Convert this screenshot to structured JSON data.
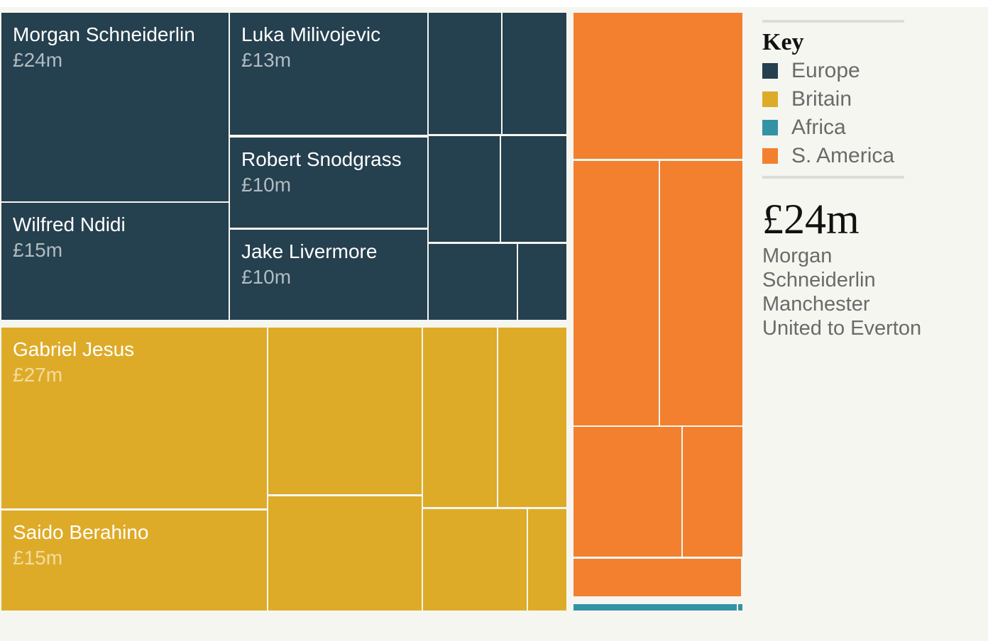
{
  "chart_data": {
    "type": "treemap",
    "legend": {
      "title": "Key",
      "items": [
        {
          "label": "Europe",
          "color": "#25404f"
        },
        {
          "label": "Britain",
          "color": "#deab28"
        },
        {
          "label": "Africa",
          "color": "#3393a5"
        },
        {
          "label": "S. America",
          "color": "#f2802f"
        }
      ]
    },
    "groups": [
      {
        "region": "Europe",
        "color": "#25404f",
        "label_color": "#b0bcc2",
        "players": [
          {
            "name": "Morgan Schneiderlin",
            "value_label": "£24m",
            "value": 24
          },
          {
            "name": "Wilfred Ndidi",
            "value_label": "£15m",
            "value": 15
          },
          {
            "name": "Luka Milivojevic",
            "value_label": "£13m",
            "value": 13
          },
          {
            "name": "Robert Snodgrass",
            "value_label": "£10m",
            "value": 10
          },
          {
            "name": "Jake Livermore",
            "value_label": "£10m",
            "value": 10
          }
        ]
      },
      {
        "region": "Britain",
        "color": "#deab28",
        "label_color": "#f3dca0",
        "players": [
          {
            "name": "Gabriel Jesus",
            "value_label": "£27m",
            "value": 27
          },
          {
            "name": "Saido Berahino",
            "value_label": "£15m",
            "value": 15
          }
        ]
      },
      {
        "region": "S. America",
        "color": "#f2802f",
        "players": []
      },
      {
        "region": "Africa",
        "color": "#3393a5",
        "players": []
      }
    ],
    "selected": {
      "value_label": "£24m",
      "description": "Morgan Schneiderlin Manchester United to Everton"
    }
  }
}
